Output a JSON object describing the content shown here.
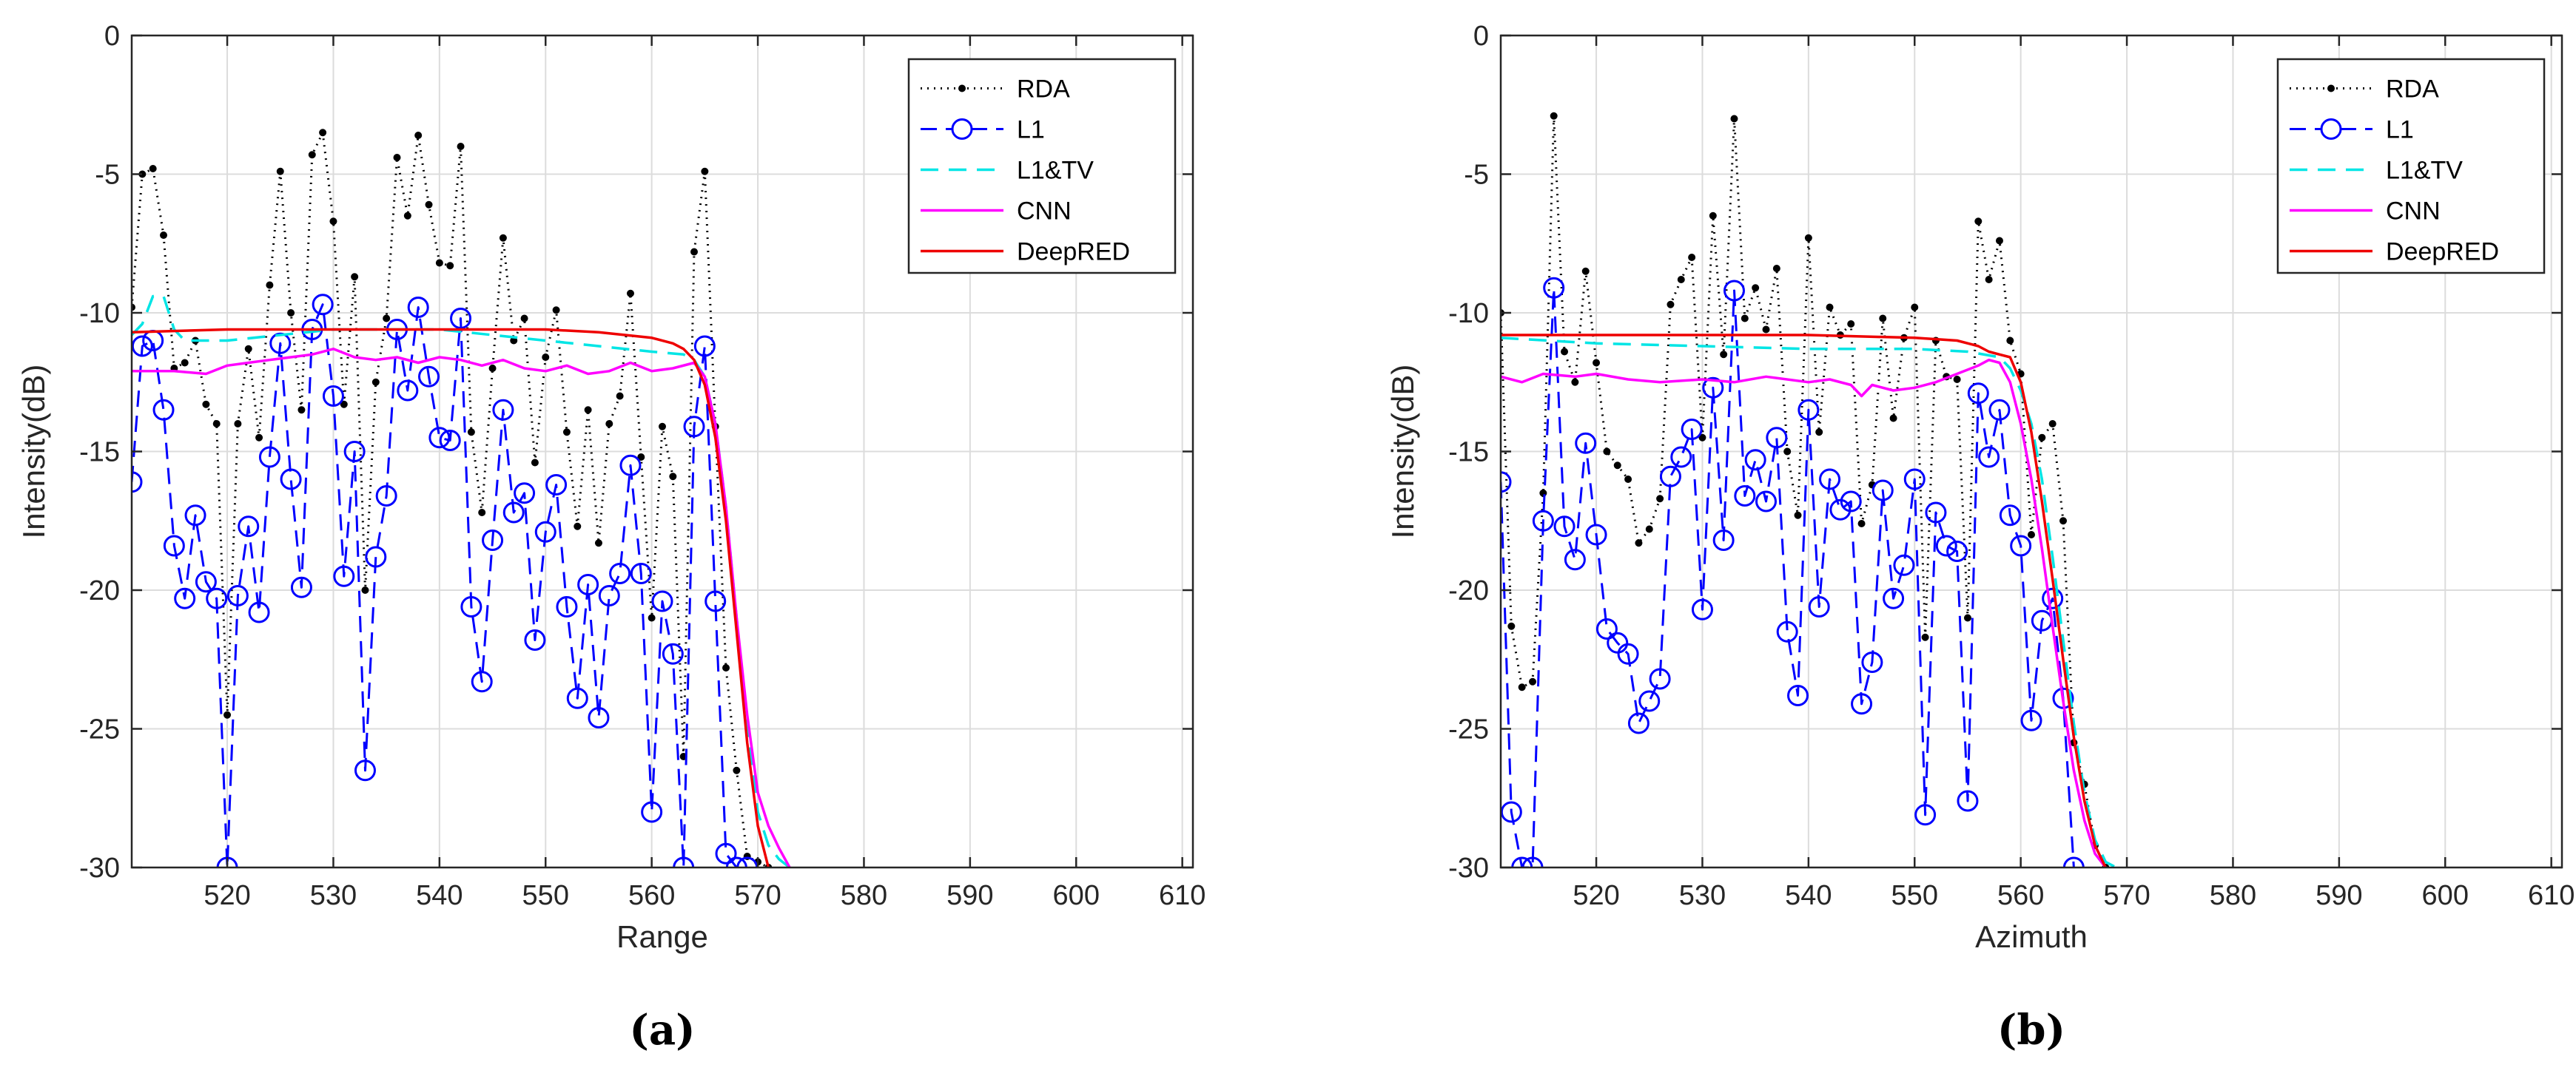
{
  "chart_data": [
    {
      "type": "line",
      "panel_label": "(a)",
      "xlabel": "Range",
      "ylabel": "Intensity(dB)",
      "xlim": [
        511,
        611
      ],
      "ylim": [
        -30,
        0
      ],
      "xticks": [
        520,
        530,
        540,
        550,
        560,
        570,
        580,
        590,
        600,
        610
      ],
      "yticks": [
        0,
        -5,
        -10,
        -15,
        -20,
        -25,
        -30
      ],
      "grid": true,
      "legend_position": "top-right",
      "series": [
        {
          "name": "RDA",
          "color": "#000000",
          "style": "dotted-dot",
          "x": [
            511,
            512,
            513,
            514,
            515,
            516,
            517,
            518,
            519,
            520,
            521,
            522,
            523,
            524,
            525,
            526,
            527,
            528,
            529,
            530,
            531,
            532,
            533,
            534,
            535,
            536,
            537,
            538,
            539,
            540,
            541,
            542,
            543,
            544,
            545,
            546,
            547,
            548,
            549,
            550,
            551,
            552,
            553,
            554,
            555,
            556,
            557,
            558,
            559,
            560,
            561,
            562,
            563,
            564,
            565,
            566,
            567,
            568,
            569,
            570,
            571
          ],
          "y": [
            -9.8,
            -5,
            -4.8,
            -7.2,
            -12,
            -11.8,
            -11,
            -13.3,
            -14,
            -24.5,
            -14,
            -11.3,
            -14.5,
            -9,
            -4.9,
            -10,
            -13.5,
            -4.3,
            -3.5,
            -6.7,
            -13.3,
            -8.7,
            -20,
            -12.5,
            -10.2,
            -4.4,
            -6.5,
            -3.6,
            -6.1,
            -8.2,
            -8.3,
            -4,
            -14.3,
            -17.2,
            -12,
            -7.3,
            -11,
            -10.2,
            -15.4,
            -11.6,
            -9.9,
            -14.3,
            -17.7,
            -13.5,
            -18.3,
            -14,
            -13,
            -9.3,
            -15.2,
            -21,
            -14.1,
            -15.9,
            -26,
            -7.8,
            -4.9,
            -14.1,
            -22.8,
            -26.5,
            -29.6,
            -29.8,
            -30
          ]
        },
        {
          "name": "L1",
          "color": "#0000ff",
          "style": "dashed-circle",
          "x": [
            511,
            512,
            513,
            514,
            515,
            516,
            517,
            518,
            519,
            520,
            521,
            522,
            523,
            524,
            525,
            526,
            527,
            528,
            529,
            530,
            531,
            532,
            533,
            534,
            535,
            536,
            537,
            538,
            539,
            540,
            541,
            542,
            543,
            544,
            545,
            546,
            547,
            548,
            549,
            550,
            551,
            552,
            553,
            554,
            555,
            556,
            557,
            558,
            559,
            560,
            561,
            562,
            563,
            564,
            565,
            566,
            567,
            568,
            569
          ],
          "y": [
            -16.1,
            -11.2,
            -11,
            -13.5,
            -18.4,
            -20.3,
            -17.3,
            -19.7,
            -20.3,
            -30,
            -20.2,
            -17.7,
            -20.8,
            -15.2,
            -11.1,
            -16,
            -19.9,
            -10.6,
            -9.7,
            -13,
            -19.5,
            -15,
            -26.5,
            -18.8,
            -16.6,
            -10.6,
            -12.8,
            -9.8,
            -12.3,
            -14.5,
            -14.6,
            -10.2,
            -20.6,
            -23.3,
            -18.2,
            -13.5,
            -17.2,
            -16.5,
            -21.8,
            -17.9,
            -16.2,
            -20.6,
            -23.9,
            -19.8,
            -24.6,
            -20.2,
            -19.4,
            -15.5,
            -19.4,
            -28,
            -20.4,
            -22.3,
            -30,
            -14.1,
            -11.2,
            -20.4,
            -29.5,
            -30,
            -30
          ]
        },
        {
          "name": "L1&TV",
          "color": "#00e5e5",
          "style": "dashed",
          "x": [
            511,
            512,
            513,
            514,
            515,
            516,
            520,
            530,
            540,
            550,
            555,
            560,
            563,
            564,
            565,
            566,
            567,
            568,
            569,
            570,
            571,
            572,
            573
          ],
          "y": [
            -10.8,
            -10.4,
            -9.4,
            -9.4,
            -10.6,
            -11,
            -11,
            -10.6,
            -10.6,
            -11,
            -11.2,
            -11.4,
            -11.5,
            -11.7,
            -12.3,
            -14,
            -17,
            -21,
            -25,
            -28,
            -29.2,
            -29.7,
            -30
          ]
        },
        {
          "name": "CNN",
          "color": "#ff00ff",
          "style": "solid",
          "x": [
            511,
            515,
            518,
            520,
            522,
            524,
            526,
            528,
            530,
            532,
            534,
            536,
            538,
            540,
            542,
            544,
            546,
            548,
            550,
            552,
            554,
            556,
            558,
            560,
            562,
            564,
            565,
            566,
            567,
            568,
            569,
            570,
            571,
            572,
            573
          ],
          "y": [
            -12.1,
            -12.1,
            -12.2,
            -11.9,
            -11.8,
            -11.7,
            -11.6,
            -11.5,
            -11.3,
            -11.6,
            -11.7,
            -11.6,
            -11.8,
            -11.6,
            -11.7,
            -11.9,
            -11.7,
            -12,
            -12.1,
            -11.9,
            -12.2,
            -12.1,
            -11.8,
            -12.1,
            -12,
            -11.8,
            -12.3,
            -14,
            -17,
            -21,
            -24.5,
            -27.3,
            -28.5,
            -29.3,
            -30
          ]
        },
        {
          "name": "DeepRED",
          "color": "#ee0000",
          "style": "solid",
          "x": [
            511,
            520,
            530,
            540,
            550,
            555,
            560,
            562,
            563,
            564,
            565,
            566,
            567,
            568,
            569,
            570,
            571
          ],
          "y": [
            -10.7,
            -10.6,
            -10.6,
            -10.6,
            -10.6,
            -10.7,
            -10.9,
            -11.1,
            -11.3,
            -11.7,
            -12.6,
            -14.5,
            -17.5,
            -21.5,
            -25.5,
            -28.5,
            -30
          ]
        }
      ]
    },
    {
      "type": "line",
      "panel_label": "(b)",
      "xlabel": "Azimuth",
      "ylabel": "Intensity(dB)",
      "xlim": [
        511,
        611
      ],
      "ylim": [
        -30,
        0
      ],
      "xticks": [
        520,
        530,
        540,
        550,
        560,
        570,
        580,
        590,
        600,
        610
      ],
      "yticks": [
        0,
        -5,
        -10,
        -15,
        -20,
        -25,
        -30
      ],
      "grid": true,
      "legend_position": "top-right",
      "series": [
        {
          "name": "RDA",
          "color": "#000000",
          "style": "dotted-dot",
          "x": [
            511,
            512,
            513,
            514,
            515,
            516,
            517,
            518,
            519,
            520,
            521,
            522,
            523,
            524,
            525,
            526,
            527,
            528,
            529,
            530,
            531,
            532,
            533,
            534,
            535,
            536,
            537,
            538,
            539,
            540,
            541,
            542,
            543,
            544,
            545,
            546,
            547,
            548,
            549,
            550,
            551,
            552,
            553,
            554,
            555,
            556,
            557,
            558,
            559,
            560,
            561,
            562,
            563,
            564,
            565,
            566,
            567,
            568
          ],
          "y": [
            -10,
            -21.3,
            -23.5,
            -23.3,
            -16.5,
            -2.9,
            -11.4,
            -12.5,
            -8.5,
            -11.8,
            -15,
            -15.5,
            -16,
            -18.3,
            -17.8,
            -16.7,
            -9.7,
            -8.8,
            -8,
            -14.5,
            -6.5,
            -11.5,
            -3,
            -10.2,
            -9.1,
            -10.6,
            -8.4,
            -15,
            -17.3,
            -7.3,
            -14.3,
            -9.8,
            -10.8,
            -10.4,
            -17.6,
            -16.2,
            -10.2,
            -13.8,
            -10.9,
            -9.8,
            -21.7,
            -11,
            -12.3,
            -12.4,
            -21,
            -6.7,
            -8.8,
            -7.4,
            -11,
            -12.2,
            -18,
            -14.5,
            -14,
            -17.5,
            -25.5,
            -27,
            -29.2,
            -30
          ]
        },
        {
          "name": "L1",
          "color": "#0000ff",
          "style": "dashed-circle",
          "x": [
            511,
            512,
            513,
            514,
            515,
            516,
            517,
            518,
            519,
            520,
            521,
            522,
            523,
            524,
            525,
            526,
            527,
            528,
            529,
            530,
            531,
            532,
            533,
            534,
            535,
            536,
            537,
            538,
            539,
            540,
            541,
            542,
            543,
            544,
            545,
            546,
            547,
            548,
            549,
            550,
            551,
            552,
            553,
            554,
            555,
            556,
            557,
            558,
            559,
            560,
            561,
            562,
            563,
            564,
            565
          ],
          "y": [
            -16.1,
            -28,
            -30,
            -30,
            -17.5,
            -9.1,
            -17.7,
            -18.9,
            -14.7,
            -18,
            -21.4,
            -21.9,
            -22.3,
            -24.8,
            -24,
            -23.2,
            -15.9,
            -15.2,
            -14.2,
            -20.7,
            -12.7,
            -18.2,
            -9.2,
            -16.6,
            -15.3,
            -16.8,
            -14.5,
            -21.5,
            -23.8,
            -13.5,
            -20.6,
            -16,
            -17.1,
            -16.8,
            -24.1,
            -22.6,
            -16.4,
            -20.3,
            -19.1,
            -16,
            -28.1,
            -17.2,
            -18.4,
            -18.6,
            -27.6,
            -12.9,
            -15.2,
            -13.5,
            -17.3,
            -18.4,
            -24.7,
            -21.1,
            -20.3,
            -23.9,
            -30
          ]
        },
        {
          "name": "L1&TV",
          "color": "#00e5e5",
          "style": "dashed",
          "x": [
            511,
            520,
            530,
            540,
            550,
            555,
            558,
            559,
            560,
            561,
            562,
            563,
            564,
            565,
            566,
            567,
            568,
            569
          ],
          "y": [
            -10.9,
            -11.1,
            -11.2,
            -11.3,
            -11.3,
            -11.4,
            -11.6,
            -12,
            -12.8,
            -14,
            -16,
            -18.8,
            -21.8,
            -24.8,
            -27.3,
            -29,
            -29.8,
            -30
          ]
        },
        {
          "name": "CNN",
          "color": "#ff00ff",
          "style": "solid",
          "x": [
            511,
            513,
            515,
            518,
            520,
            523,
            526,
            530,
            533,
            536,
            540,
            542,
            544,
            545,
            546,
            548,
            550,
            552,
            554,
            556,
            557,
            558,
            559,
            560,
            561,
            562,
            563,
            564,
            565,
            566,
            567,
            568
          ],
          "y": [
            -12.3,
            -12.5,
            -12.2,
            -12.3,
            -12.2,
            -12.4,
            -12.5,
            -12.4,
            -12.5,
            -12.3,
            -12.5,
            -12.4,
            -12.6,
            -13,
            -12.6,
            -12.8,
            -12.7,
            -12.5,
            -12.2,
            -11.9,
            -11.7,
            -11.8,
            -12.5,
            -14,
            -16,
            -18.5,
            -21.3,
            -24,
            -26.5,
            -28.3,
            -29.5,
            -30
          ]
        },
        {
          "name": "DeepRED",
          "color": "#ee0000",
          "style": "solid",
          "x": [
            511,
            520,
            530,
            540,
            550,
            554,
            556,
            557,
            558,
            559,
            560,
            561,
            562,
            563,
            564,
            565,
            566,
            567,
            568
          ],
          "y": [
            -10.8,
            -10.8,
            -10.8,
            -10.8,
            -10.9,
            -11,
            -11.2,
            -11.4,
            -11.5,
            -11.6,
            -12.5,
            -14.3,
            -16.8,
            -19.6,
            -22.5,
            -25.3,
            -27.6,
            -29.2,
            -30
          ]
        }
      ]
    }
  ]
}
